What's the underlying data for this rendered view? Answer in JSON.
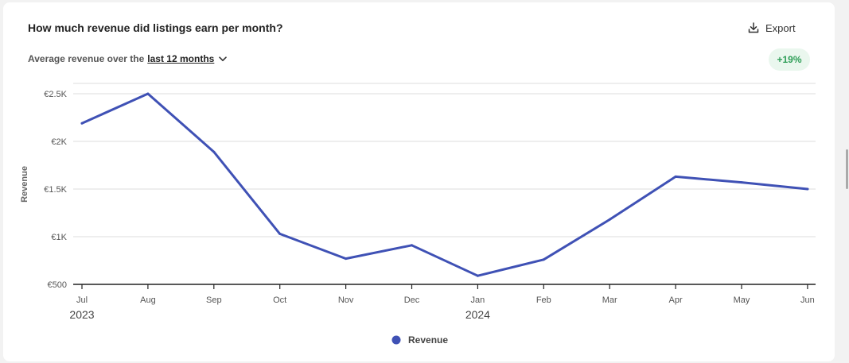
{
  "header": {
    "title": "How much revenue did listings earn per month?",
    "export_label": "Export",
    "subtitle_prefix": "Average revenue over the",
    "period_label": "last 12 months",
    "change_badge": "+19%"
  },
  "colors": {
    "series": "#3f51b5",
    "badge_bg": "#eaf7ee",
    "badge_text": "#2e9e57",
    "grid": "#dddddd"
  },
  "icons": {
    "export": "download-icon",
    "period": "chevron-down-icon"
  },
  "chart_data": {
    "type": "line",
    "title": "How much revenue did listings earn per month?",
    "ylabel": "Revenue",
    "xlabel": "",
    "categories": [
      "Jul",
      "Aug",
      "Sep",
      "Oct",
      "Nov",
      "Dec",
      "Jan",
      "Feb",
      "Mar",
      "Apr",
      "May",
      "Jun"
    ],
    "year_labels": [
      {
        "category": "Jul",
        "label": "2023"
      },
      {
        "category": "Jan",
        "label": "2024"
      }
    ],
    "series": [
      {
        "name": "Revenue",
        "values": [
          2190,
          2500,
          1890,
          1030,
          770,
          910,
          590,
          760,
          1180,
          1630,
          1570,
          1500
        ]
      }
    ],
    "ylim": [
      500,
      2500
    ],
    "y_ticks": [
      {
        "value": 500,
        "label": "€500"
      },
      {
        "value": 1000,
        "label": "€1K"
      },
      {
        "value": 1500,
        "label": "€1.5K"
      },
      {
        "value": 2000,
        "label": "€2K"
      },
      {
        "value": 2500,
        "label": "€2.5K"
      }
    ],
    "grid": true,
    "legend_position": "bottom-center"
  }
}
